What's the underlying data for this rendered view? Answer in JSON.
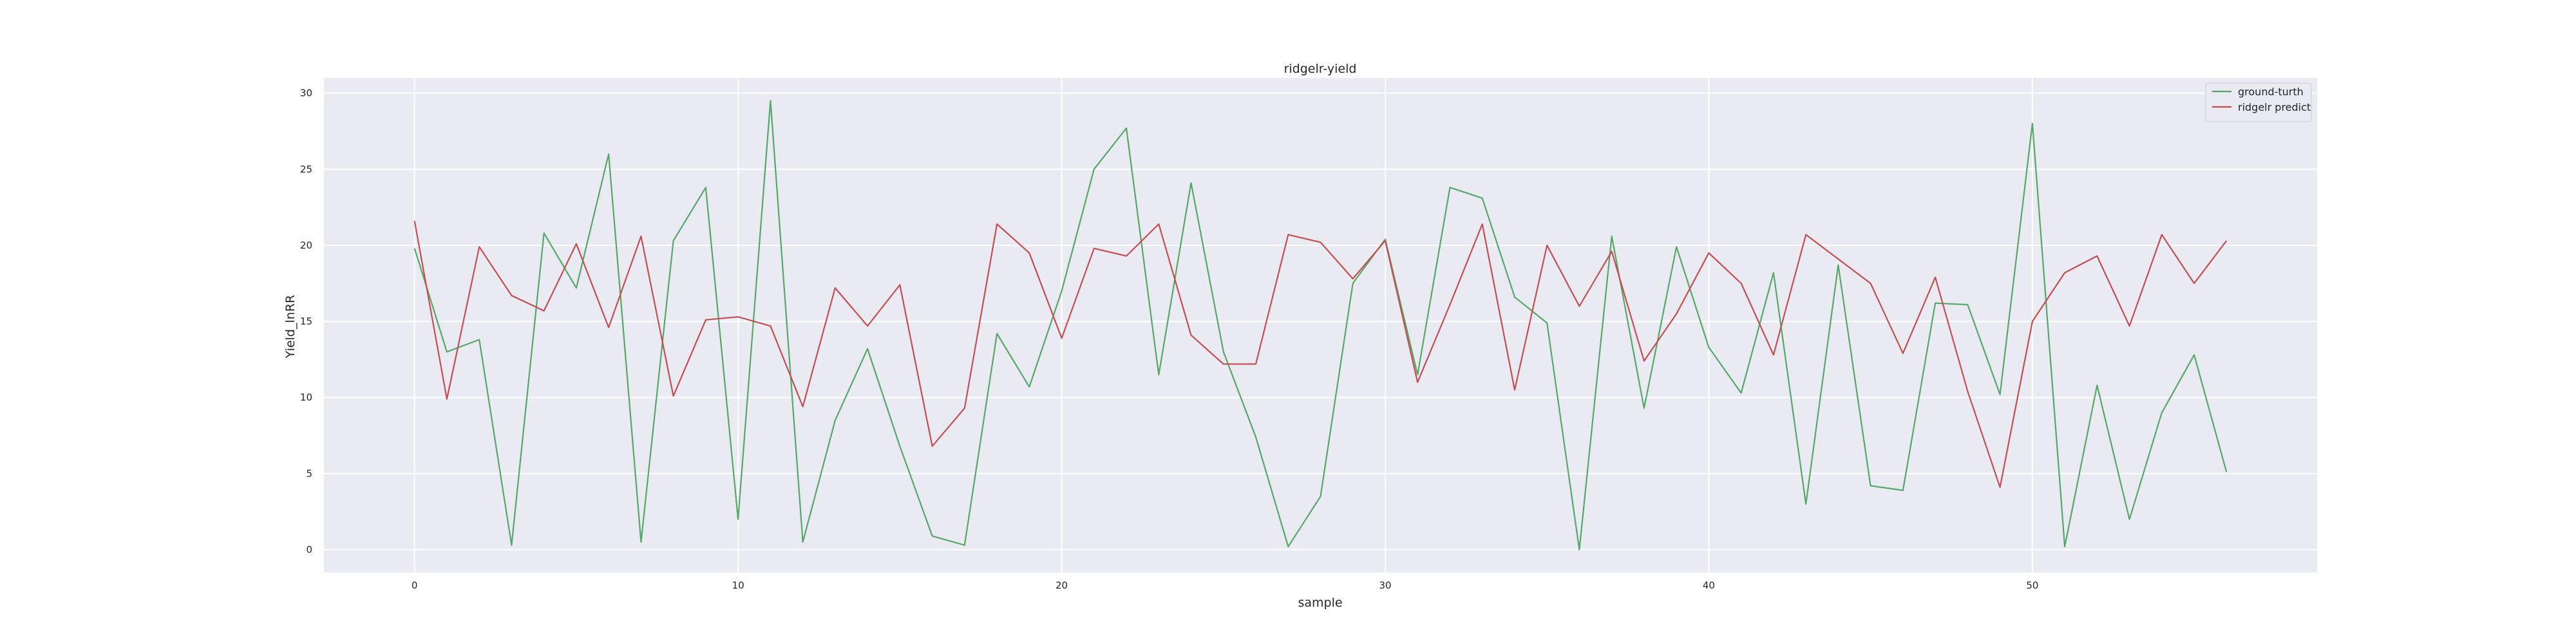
{
  "chart_data": {
    "type": "line",
    "title": "ridgelr-yield",
    "xlabel": "sample",
    "ylabel": "Yield_lnRR",
    "xlim": [
      -2.8,
      58.8
    ],
    "ylim": [
      -1.5,
      31.0
    ],
    "xticks": [
      0,
      10,
      20,
      30,
      40,
      50
    ],
    "yticks": [
      0,
      5,
      10,
      15,
      20,
      25,
      30
    ],
    "grid": true,
    "legend_position": "top-right",
    "background_color": "#eaeaf2",
    "x": [
      0,
      1,
      2,
      3,
      4,
      5,
      6,
      7,
      8,
      9,
      10,
      11,
      12,
      13,
      14,
      15,
      16,
      17,
      18,
      19,
      20,
      21,
      22,
      23,
      24,
      25,
      26,
      27,
      28,
      29,
      30,
      31,
      32,
      33,
      34,
      35,
      36,
      37,
      38,
      39,
      40,
      41,
      42,
      43,
      44,
      45,
      46,
      47,
      48,
      49,
      50,
      51,
      52,
      53,
      54,
      55,
      56
    ],
    "series": [
      {
        "name": "ground-turth",
        "color": "#55a868",
        "values": [
          19.8,
          13.0,
          13.8,
          0.3,
          20.8,
          17.2,
          26.0,
          0.5,
          20.3,
          23.8,
          2.0,
          29.5,
          0.5,
          8.5,
          13.2,
          6.8,
          0.9,
          0.3,
          14.2,
          10.7,
          17.0,
          25.0,
          27.7,
          11.5,
          24.1,
          13.0,
          7.4,
          0.2,
          3.5,
          17.5,
          20.4,
          11.5,
          23.8,
          23.1,
          16.6,
          14.9,
          0.0,
          20.6,
          9.3,
          19.9,
          13.3,
          10.3,
          18.2,
          3.0,
          18.7,
          4.2,
          3.9,
          16.2,
          16.1,
          10.2,
          28.0,
          0.2,
          10.8,
          2.0,
          9.0,
          12.8,
          5.1
        ]
      },
      {
        "name": "ridgelr predict",
        "color": "#c44e52",
        "values": [
          21.6,
          9.9,
          19.9,
          16.7,
          15.7,
          20.1,
          14.6,
          20.6,
          10.1,
          15.1,
          15.3,
          14.7,
          9.4,
          17.2,
          14.7,
          17.4,
          6.8,
          9.3,
          21.4,
          19.5,
          13.9,
          19.8,
          19.3,
          21.4,
          14.1,
          12.2,
          12.2,
          20.7,
          20.2,
          17.8,
          20.3,
          11.0,
          16.1,
          21.4,
          10.5,
          20.0,
          16.0,
          19.6,
          12.4,
          15.5,
          19.5,
          17.5,
          12.8,
          20.7,
          19.1,
          17.5,
          12.9,
          17.9,
          10.4,
          4.1,
          15.0,
          18.2,
          19.3,
          14.7,
          20.7,
          17.5,
          20.3
        ]
      }
    ]
  }
}
